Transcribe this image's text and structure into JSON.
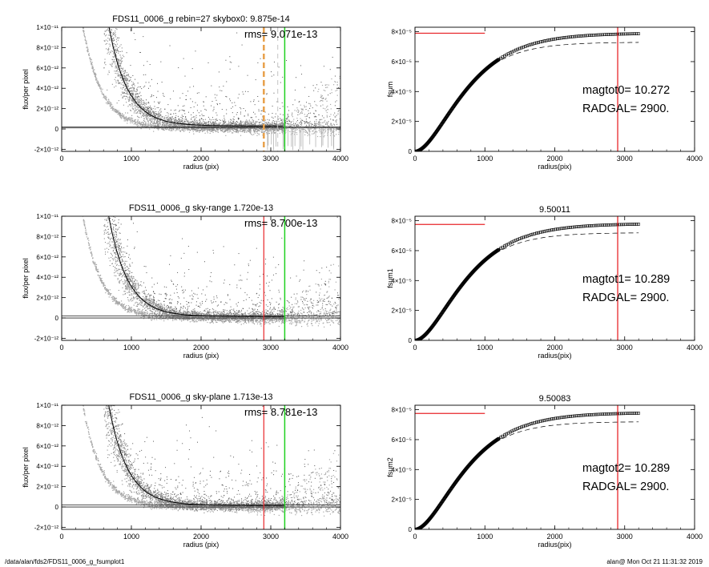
{
  "footer": {
    "left": "/data/alan/fds2/FDS11_0006_g_fsumplot1",
    "right": "alan@  Mon Oct 21 11:31:32 2019"
  },
  "colors": {
    "scatter_dark": "#555555",
    "scatter_light": "#a8a8a8",
    "line": "#000000",
    "red": "#e8262a",
    "green": "#1fd11f",
    "orange": "#e8a04a",
    "skygrey": "#c4c4c4"
  },
  "chart_data": [
    {
      "type": "scatter",
      "title": "FDS11_0006_g rebin=27    skybox0:  9.875e-14",
      "annotation": "rms= 9.071e-13",
      "xlabel": "radius (pix)",
      "ylabel": "flux/per pixel",
      "xlim": [
        0,
        4000
      ],
      "ylim": [
        -2.2e-12,
        1e-11
      ],
      "xticks": [
        0,
        1000,
        2000,
        3000,
        4000
      ],
      "xticklabels": [
        "0",
        "1000",
        "2000",
        "3000",
        "4000"
      ],
      "yticks": [
        -2e-12,
        0,
        2e-12,
        4e-12,
        6e-12,
        8e-12,
        1e-11
      ],
      "yticklabels": [
        "-2×10⁻¹²",
        "0",
        "2×10⁻¹²",
        "4×10⁻¹²",
        "6×10⁻¹²",
        "8×10⁻¹²",
        "1×10⁻¹¹"
      ],
      "profile": {
        "amplitude": 1.2e-10,
        "scale": 270,
        "offset": 3e-13,
        "x_start": 630,
        "x_end": 3180
      },
      "horizontal_lines": [
        1e-13,
        2e-13
      ],
      "vertical_lines": [
        {
          "x": 2900,
          "color": "orange",
          "style": "dashed",
          "width": 2.5
        },
        {
          "x": 3100,
          "color": "skygrey",
          "style": "dashed",
          "width": 1
        },
        {
          "x": 3200,
          "color": "green",
          "style": "solid",
          "width": 1.5
        }
      ],
      "sky_spikes": true
    },
    {
      "type": "line",
      "title": "",
      "annotation_lines": [
        "magtot0=  10.272",
        "RADGAL=   2900."
      ],
      "xlabel": "radius(pix)",
      "ylabel": "fsum",
      "xlim": [
        0,
        4000
      ],
      "ylim": [
        0,
        8.3e-05
      ],
      "xticks": [
        0,
        1000,
        2000,
        3000,
        4000
      ],
      "xticklabels": [
        "0",
        "1000",
        "2000",
        "3000",
        "4000"
      ],
      "yticks": [
        0,
        2e-05,
        4e-05,
        6e-05,
        8e-05
      ],
      "yticklabels": [
        "0",
        "2×10⁻⁵",
        "4×10⁻⁵",
        "6×10⁻⁵",
        "8×10⁻⁵"
      ],
      "curve_max": 7.9e-05,
      "dashed_max": 7.3e-05,
      "curve_scale": 420,
      "red_hline": {
        "y": 7.9e-05,
        "x": [
          0,
          1000
        ]
      },
      "red_vline": 2900,
      "x_end": 3200
    },
    {
      "type": "scatter",
      "title": "FDS11_0006_g sky-range  1.720e-13",
      "annotation": "rms= 8.700e-13",
      "xlabel": "radius (pix)",
      "ylabel": "flux/per pixel",
      "xlim": [
        0,
        4000
      ],
      "ylim": [
        -2.2e-12,
        1e-11
      ],
      "xticks": [
        0,
        1000,
        2000,
        3000,
        4000
      ],
      "xticklabels": [
        "0",
        "1000",
        "2000",
        "3000",
        "4000"
      ],
      "yticks": [
        -2e-12,
        0,
        2e-12,
        4e-12,
        6e-12,
        8e-12,
        1e-11
      ],
      "yticklabels": [
        "-2×10⁻¹²",
        "0",
        "2×10⁻¹²",
        "4×10⁻¹²",
        "6×10⁻¹²",
        "8×10⁻¹²",
        "1×10⁻¹¹"
      ],
      "profile": {
        "amplitude": 1.2e-10,
        "scale": 270,
        "offset": 1.5e-13,
        "x_start": 630,
        "x_end": 3200
      },
      "horizontal_lines": [
        0,
        2e-13
      ],
      "vertical_lines": [
        {
          "x": 2900,
          "color": "red",
          "style": "solid",
          "width": 1.2
        },
        {
          "x": 3200,
          "color": "green",
          "style": "solid",
          "width": 1.5
        }
      ],
      "sky_spikes": false
    },
    {
      "type": "line",
      "title": "9.50011",
      "annotation_lines": [
        "magtot1=  10.289",
        "RADGAL=   2900."
      ],
      "xlabel": "radius(pix)",
      "ylabel": "fsum1",
      "xlim": [
        0,
        4000
      ],
      "ylim": [
        0,
        8.3e-05
      ],
      "xticks": [
        0,
        1000,
        2000,
        3000,
        4000
      ],
      "xticklabels": [
        "0",
        "1000",
        "2000",
        "3000",
        "4000"
      ],
      "yticks": [
        0,
        2e-05,
        4e-05,
        6e-05,
        8e-05
      ],
      "yticklabels": [
        "0",
        "2×10⁻⁵",
        "4×10⁻⁵",
        "6×10⁻⁵",
        "8×10⁻⁵"
      ],
      "curve_max": 7.8e-05,
      "dashed_max": 7.2e-05,
      "curve_scale": 420,
      "red_hline": {
        "y": 7.75e-05,
        "x": [
          0,
          1000
        ]
      },
      "red_vline": 2900,
      "x_end": 3200
    },
    {
      "type": "scatter",
      "title": "FDS11_0006_g sky-plane  1.713e-13",
      "annotation": "rms= 8.781e-13",
      "xlabel": "radius (pix)",
      "ylabel": "flux/per pixel",
      "xlim": [
        0,
        4000
      ],
      "ylim": [
        -2.2e-12,
        1e-11
      ],
      "xticks": [
        0,
        1000,
        2000,
        3000,
        4000
      ],
      "xticklabels": [
        "0",
        "1000",
        "2000",
        "3000",
        "4000"
      ],
      "yticks": [
        -2e-12,
        0,
        2e-12,
        4e-12,
        6e-12,
        8e-12,
        1e-11
      ],
      "yticklabels": [
        "-2×10⁻¹²",
        "0",
        "2×10⁻¹²",
        "4×10⁻¹²",
        "6×10⁻¹²",
        "8×10⁻¹²",
        "1×10⁻¹¹"
      ],
      "profile": {
        "amplitude": 1.2e-10,
        "scale": 270,
        "offset": 1.5e-13,
        "x_start": 630,
        "x_end": 3200
      },
      "horizontal_lines": [
        0,
        2e-13
      ],
      "vertical_lines": [
        {
          "x": 2900,
          "color": "red",
          "style": "solid",
          "width": 1.2
        },
        {
          "x": 3200,
          "color": "green",
          "style": "solid",
          "width": 1.5
        }
      ],
      "sky_spikes": false
    },
    {
      "type": "line",
      "title": "9.50083",
      "annotation_lines": [
        "magtot2=  10.289",
        "RADGAL=   2900."
      ],
      "xlabel": "radius(pix)",
      "ylabel": "fsum2",
      "xlim": [
        0,
        4000
      ],
      "ylim": [
        0,
        8.3e-05
      ],
      "xticks": [
        0,
        1000,
        2000,
        3000,
        4000
      ],
      "xticklabels": [
        "0",
        "1000",
        "2000",
        "3000",
        "4000"
      ],
      "yticks": [
        0,
        2e-05,
        4e-05,
        6e-05,
        8e-05
      ],
      "yticklabels": [
        "0",
        "2×10⁻⁵",
        "4×10⁻⁵",
        "6×10⁻⁵",
        "8×10⁻⁵"
      ],
      "curve_max": 7.8e-05,
      "dashed_max": 7.2e-05,
      "curve_scale": 420,
      "red_hline": {
        "y": 7.75e-05,
        "x": [
          0,
          1000
        ]
      },
      "red_vline": 2900,
      "x_end": 3200
    }
  ]
}
